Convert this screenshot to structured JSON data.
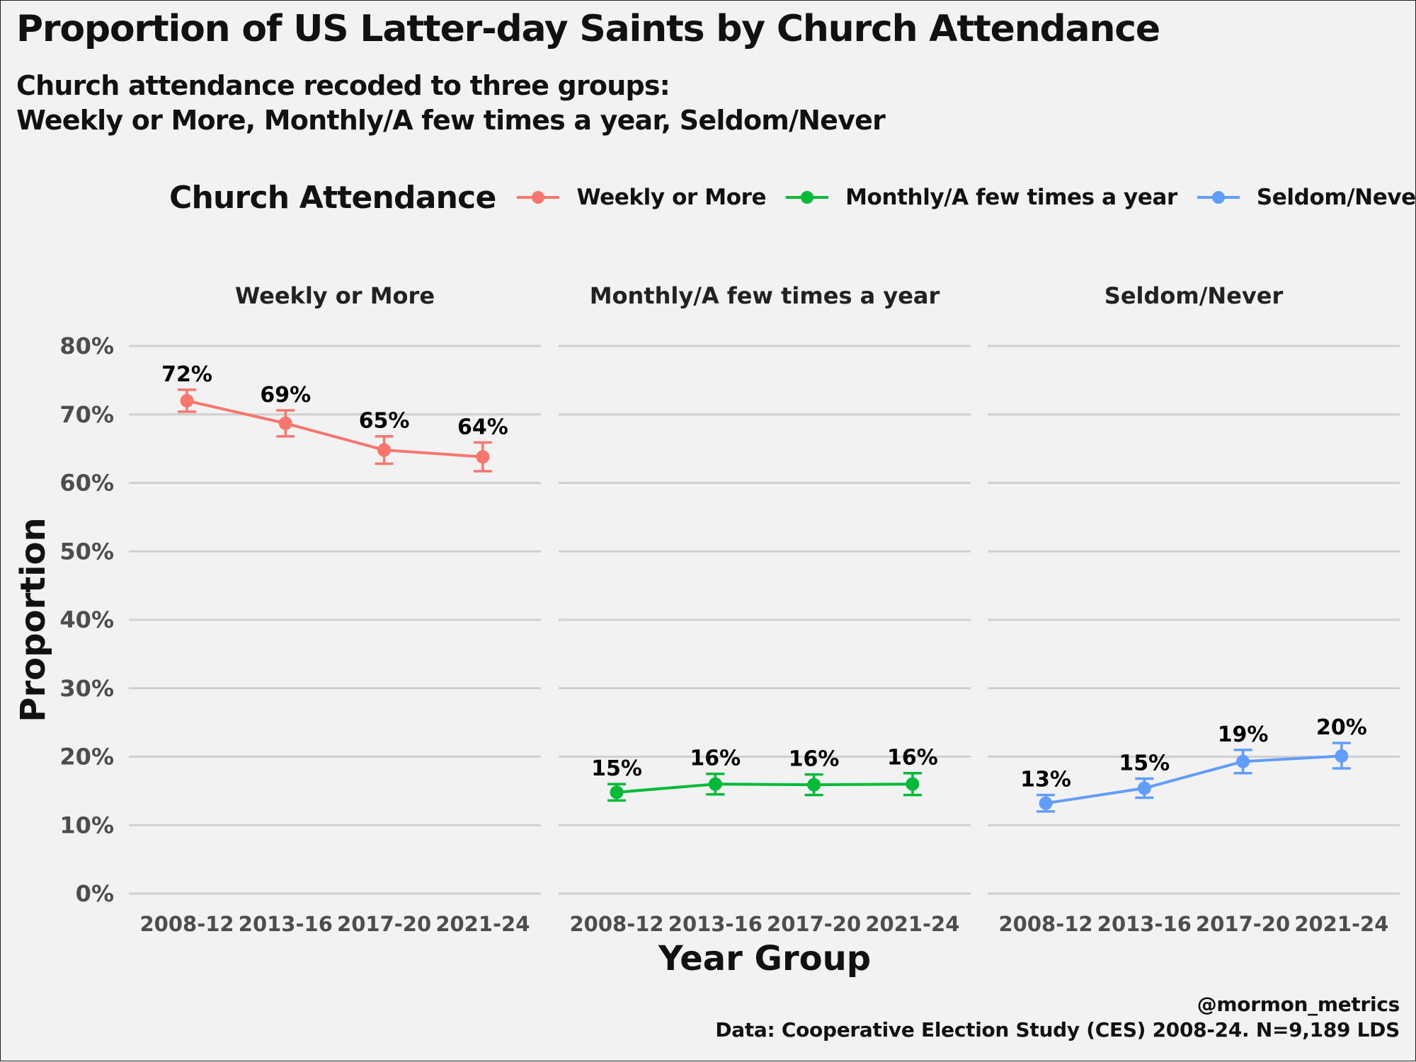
{
  "title": "Proportion of US Latter-day Saints by Church Attendance",
  "subtitle_lines": [
    "Church attendance recoded to three groups:",
    "Weekly or More, Monthly/A few times a year, Seldom/Never"
  ],
  "legend": {
    "title": "Church Attendance",
    "items": [
      {
        "label": "Weekly or More",
        "color": "#f8766d"
      },
      {
        "label": "Monthly/A few times a year",
        "color": "#00ba38"
      },
      {
        "label": "Seldom/Never",
        "color": "#619cff"
      }
    ]
  },
  "caption": {
    "line1": "@mormon_metrics",
    "line2": "Data: Cooperative Election Study (CES) 2008-24. N=9,189 LDS"
  },
  "chart_data": {
    "type": "line",
    "xlabel": "Year Group",
    "ylabel": "Proportion",
    "ylim": [
      0,
      0.8
    ],
    "y_ticks": [
      0,
      0.1,
      0.2,
      0.3,
      0.4,
      0.5,
      0.6,
      0.7,
      0.8
    ],
    "y_tick_labels": [
      "0%",
      "10%",
      "20%",
      "30%",
      "40%",
      "50%",
      "60%",
      "70%",
      "80%"
    ],
    "categories": [
      "2008-12",
      "2013-16",
      "2017-20",
      "2021-24"
    ],
    "grid": true,
    "legend_position": "top",
    "facets": [
      {
        "name": "Weekly or More",
        "color": "#f8766d",
        "values": [
          0.72,
          0.687,
          0.648,
          0.638
        ],
        "ci_low": [
          0.704,
          0.668,
          0.628,
          0.617
        ],
        "ci_high": [
          0.736,
          0.706,
          0.668,
          0.659
        ],
        "labels": [
          "72%",
          "69%",
          "65%",
          "64%"
        ]
      },
      {
        "name": "Monthly/A few times a year",
        "color": "#00ba38",
        "values": [
          0.148,
          0.16,
          0.159,
          0.16
        ],
        "ci_low": [
          0.136,
          0.145,
          0.144,
          0.144
        ],
        "ci_high": [
          0.16,
          0.175,
          0.174,
          0.176
        ],
        "labels": [
          "15%",
          "16%",
          "16%",
          "16%"
        ]
      },
      {
        "name": "Seldom/Never",
        "color": "#619cff",
        "values": [
          0.132,
          0.154,
          0.193,
          0.201
        ],
        "ci_low": [
          0.12,
          0.14,
          0.176,
          0.183
        ],
        "ci_high": [
          0.144,
          0.168,
          0.21,
          0.22
        ],
        "labels": [
          "13%",
          "15%",
          "19%",
          "20%"
        ]
      }
    ]
  }
}
